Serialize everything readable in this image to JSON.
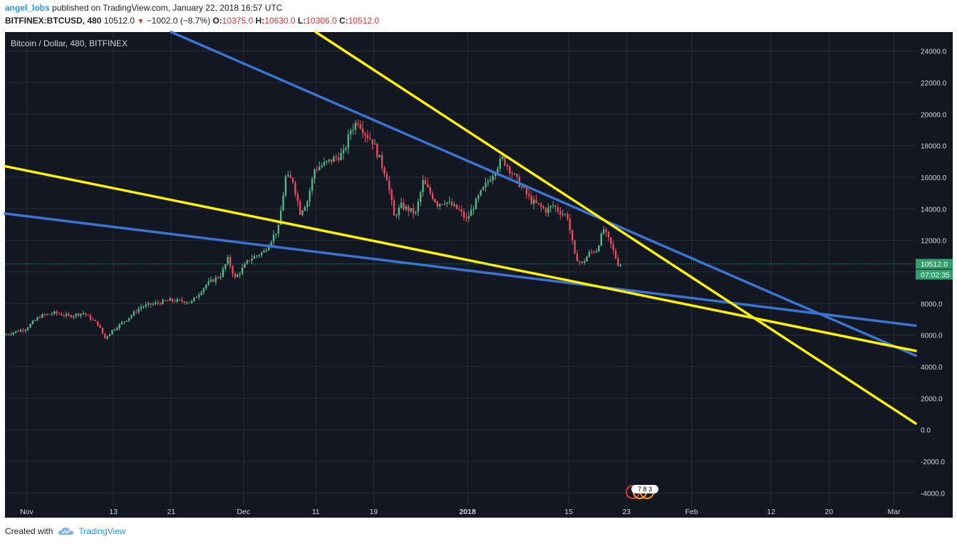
{
  "header": {
    "author": "angel_lobs",
    "published": "published on TradingView.com, January 22, 2018 16:57 UTC",
    "symbol": "BITFINEX:BTCUSD, 480",
    "last": "10512.0",
    "change": "−1002.0 (−8.7%)",
    "o_label": "O:",
    "o_value": "10375.0",
    "h_label": "H:",
    "h_value": "10630.0",
    "l_label": "L:",
    "l_value": "10306.0",
    "c_label": "C:",
    "c_value": "10512.0"
  },
  "chart_title": "Bitcoin / Dollar, 480, BITFINEX",
  "price_tag": "10512.0",
  "time_tag": "07:02:35",
  "events_badge": "7 8 3",
  "footer": {
    "created_with": "Created with",
    "brand": "TradingView"
  },
  "colors": {
    "background": "#131722",
    "grid": "#2a2e39",
    "up": "#53b987",
    "down": "#eb4d5c",
    "blue_line": "#3b73d1",
    "yellow_line": "#fff200",
    "price_tag": "#2ea06c"
  },
  "chart_data": {
    "type": "candlestick",
    "title": "Bitcoin / Dollar, 480, BITFINEX",
    "ylim": [
      -4800,
      25200
    ],
    "y_ticks": [
      -4000,
      -2000,
      0,
      2000,
      4000,
      6000,
      8000,
      10000,
      12000,
      14000,
      16000,
      18000,
      20000,
      22000,
      24000
    ],
    "y_tick_labels": [
      "-4000.0",
      "-2000.0",
      "0.0",
      "2000.0",
      "4000.0",
      "6000.0",
      "8000.0",
      "10000.0",
      "12000.0",
      "14000.0",
      "16000.0",
      "18000.0",
      "20000.0",
      "22000.0",
      "24000.0"
    ],
    "x_ticks": [
      {
        "label": "Nov",
        "date": "2017-11-01"
      },
      {
        "label": "13",
        "date": "2017-11-13"
      },
      {
        "label": "21",
        "date": "2017-11-21"
      },
      {
        "label": "Dec",
        "date": "2017-12-01"
      },
      {
        "label": "11",
        "date": "2017-12-11"
      },
      {
        "label": "19",
        "date": "2017-12-19"
      },
      {
        "label": "2018",
        "date": "2018-01-01",
        "bold": true
      },
      {
        "label": "15",
        "date": "2018-01-15"
      },
      {
        "label": "23",
        "date": "2018-01-23"
      },
      {
        "label": "Feb",
        "date": "2018-02-01"
      },
      {
        "label": "12",
        "date": "2018-02-12"
      },
      {
        "label": "20",
        "date": "2018-02-20"
      },
      {
        "label": "Mar",
        "date": "2018-03-01"
      }
    ],
    "xlim": [
      "2017-10-29",
      "2018-03-04"
    ],
    "price_path": [
      [
        "2017-10-29",
        6000
      ],
      [
        "2017-11-01",
        6400
      ],
      [
        "2017-11-03",
        7200
      ],
      [
        "2017-11-05",
        7400
      ],
      [
        "2017-11-07",
        7200
      ],
      [
        "2017-11-09",
        7400
      ],
      [
        "2017-11-11",
        6700
      ],
      [
        "2017-11-12",
        5800
      ],
      [
        "2017-11-13",
        6300
      ],
      [
        "2017-11-15",
        7000
      ],
      [
        "2017-11-17",
        7800
      ],
      [
        "2017-11-19",
        8000
      ],
      [
        "2017-11-21",
        8200
      ],
      [
        "2017-11-24",
        8100
      ],
      [
        "2017-11-26",
        9200
      ],
      [
        "2017-11-28",
        9800
      ],
      [
        "2017-11-29",
        10800
      ],
      [
        "2017-11-30",
        9600
      ],
      [
        "2017-12-02",
        10800
      ],
      [
        "2017-12-04",
        11300
      ],
      [
        "2017-12-06",
        12800
      ],
      [
        "2017-12-07",
        16000
      ],
      [
        "2017-12-08",
        15800
      ],
      [
        "2017-12-09",
        13800
      ],
      [
        "2017-12-10",
        14500
      ],
      [
        "2017-12-11",
        16500
      ],
      [
        "2017-12-13",
        17000
      ],
      [
        "2017-12-15",
        17500
      ],
      [
        "2017-12-16",
        19000
      ],
      [
        "2017-12-17",
        19600
      ],
      [
        "2017-12-18",
        18800
      ],
      [
        "2017-12-19",
        18300
      ],
      [
        "2017-12-21",
        16000
      ],
      [
        "2017-12-22",
        13500
      ],
      [
        "2017-12-23",
        14200
      ],
      [
        "2017-12-25",
        13700
      ],
      [
        "2017-12-26",
        15700
      ],
      [
        "2017-12-28",
        14300
      ],
      [
        "2017-12-29",
        14500
      ],
      [
        "2017-12-31",
        13900
      ],
      [
        "2018-01-01",
        13300
      ],
      [
        "2018-01-03",
        15000
      ],
      [
        "2018-01-05",
        16500
      ],
      [
        "2018-01-06",
        17200
      ],
      [
        "2018-01-08",
        15800
      ],
      [
        "2018-01-10",
        14500
      ],
      [
        "2018-01-12",
        13900
      ],
      [
        "2018-01-13",
        14200
      ],
      [
        "2018-01-14",
        13800
      ],
      [
        "2018-01-15",
        13500
      ],
      [
        "2018-01-16",
        11000
      ],
      [
        "2018-01-17",
        10500
      ],
      [
        "2018-01-18",
        11200
      ],
      [
        "2018-01-19",
        11400
      ],
      [
        "2018-01-20",
        12700
      ],
      [
        "2018-01-21",
        11700
      ],
      [
        "2018-01-22",
        10512
      ]
    ],
    "trendlines": [
      {
        "color": "blue",
        "from": [
          "2017-11-21",
          25200
        ],
        "to": [
          "2018-03-04",
          4700
        ]
      },
      {
        "color": "blue",
        "from": [
          "2017-10-29",
          13700
        ],
        "to": [
          "2018-03-04",
          6600
        ]
      },
      {
        "color": "yellow",
        "from": [
          "2017-12-11",
          25200
        ],
        "to": [
          "2018-03-04",
          400
        ]
      },
      {
        "color": "yellow",
        "from": [
          "2017-10-29",
          16700
        ],
        "to": [
          "2018-03-04",
          5000
        ]
      }
    ],
    "last_price": 10512.0
  }
}
